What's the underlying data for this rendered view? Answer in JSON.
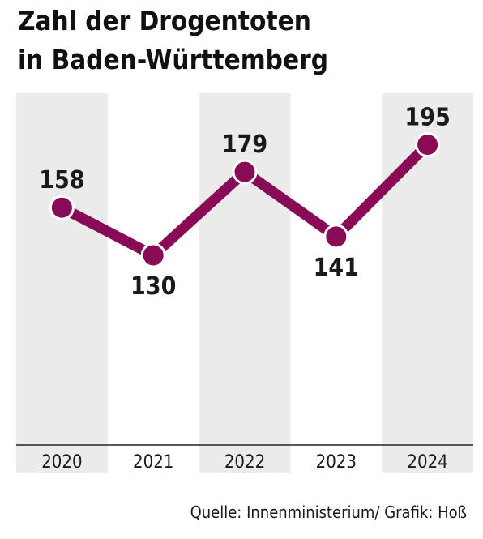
{
  "chart_data": {
    "type": "line",
    "title_line1": "Zahl der Drogentoten",
    "title_line2": "in Baden-Württemberg",
    "categories": [
      "2020",
      "2021",
      "2022",
      "2023",
      "2024"
    ],
    "values": [
      158,
      130,
      179,
      141,
      195
    ],
    "xlabel": "",
    "ylabel": "",
    "line_color": "#8a0b55",
    "band_color": "#ebebeb",
    "grid": false,
    "legend": "none"
  },
  "source": "Quelle: Innenministerium/ Grafik: Hoß"
}
